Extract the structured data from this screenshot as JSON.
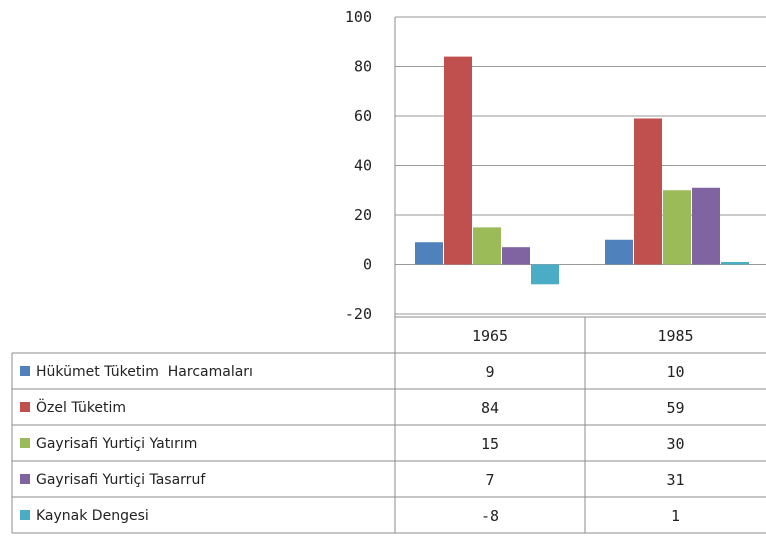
{
  "chart_data": {
    "type": "bar",
    "categories": [
      "1965",
      "1985"
    ],
    "series": [
      {
        "name": "Hükümet Tüketim  Harcamaları",
        "values": [
          9,
          10
        ],
        "color": "#4f81bd"
      },
      {
        "name": "Özel Tüketim",
        "values": [
          84,
          59
        ],
        "color": "#c0504d"
      },
      {
        "name": "Gayrisafi Yurtiçi Yatırım",
        "values": [
          15,
          30
        ],
        "color": "#9bbb59"
      },
      {
        "name": "Gayrisafi Yurtiçi Tasarruf",
        "values": [
          7,
          31
        ],
        "color": "#8064a2"
      },
      {
        "name": "Kaynak Dengesi",
        "values": [
          -8,
          1
        ],
        "color": "#4bacc6"
      }
    ],
    "table_values": [
      [
        "9",
        "10"
      ],
      [
        "84",
        "59"
      ],
      [
        "15",
        "30"
      ],
      [
        "7",
        "31"
      ],
      [
        "-8",
        "1"
      ]
    ],
    "yticks": [
      "100",
      "80",
      "60",
      "40",
      "20",
      "0",
      "-20"
    ],
    "ylim": [
      -20,
      100
    ],
    "grid": true,
    "legend": "data table below chart"
  }
}
